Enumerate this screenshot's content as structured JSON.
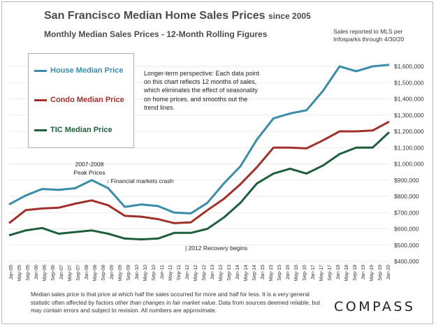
{
  "header": {
    "title": "San Francisco Median Home Sales Prices",
    "title_suffix": "since 2005",
    "subtitle": "Monthly Median Sales Prices - 12-Month Rolling Figures",
    "source_line1": "Sales reported to MLS per",
    "source_line2": "Infosparks through 4/30/20"
  },
  "legend": {
    "items": [
      {
        "label": "House Median Price",
        "color": "#3a8ca8"
      },
      {
        "label": "Condo Median Price",
        "color": "#a2302a"
      },
      {
        "label": "TIC Median Price",
        "color": "#1f5e3d"
      }
    ]
  },
  "note": "Longer-term perspective:  Each data point on this chart reflects 12 months of sales, which eliminates the effect of seasonality on home prices, and smooths out the trend lines.",
  "footer": {
    "text_a": "Median sales price is that price at which half the sales occurred for more and half for less. It is a very general statistic often affected by factors ",
    "text_italic": "other than changes in fair market value",
    "text_b": ". Data from sources deemed reliable, but may contain errors and subject to revision. All numbers are approximate."
  },
  "logo": "COMPASS",
  "chart_data": {
    "type": "line",
    "title": "San Francisco Median Home Sales Prices since 2005",
    "subtitle": "Monthly Median Sales Prices - 12-Month Rolling Figures",
    "x": [
      "Jan-05",
      "Sep-05",
      "May-06",
      "Jan-07",
      "Sep-07",
      "May-08",
      "Jan-09",
      "Sep-09",
      "May-10",
      "Jan-11",
      "Sep-11",
      "May-12",
      "Jan-13",
      "Sep-13",
      "May-14",
      "Jan-15",
      "Sep-15",
      "May-16",
      "Jan-17",
      "Sep-17",
      "May-18",
      "Jan-19",
      "Sep-19",
      "May-20"
    ],
    "x_tick_labels": [
      "Jan-05",
      "May-05",
      "Sep-05",
      "Jan-06",
      "May-06",
      "Sep-06",
      "Jan-07",
      "May-07",
      "Sep-07",
      "Jan-08",
      "May-08",
      "Sep-08",
      "Jan-09",
      "May-09",
      "Sep-09",
      "Jan-10",
      "May-10",
      "Sep-10",
      "Jan-11",
      "May-11",
      "Sep-11",
      "Jan-12",
      "May-12",
      "Sep-12",
      "Jan-13",
      "May-13",
      "Sep-13",
      "Jan-14",
      "May-14",
      "Sep-14",
      "Jan-15",
      "May-15",
      "Sep-15",
      "Jan-16",
      "May-16",
      "Sep-16",
      "Jan-17",
      "May-17",
      "Sep-17",
      "Jan-18",
      "May-18",
      "Sep-18",
      "Jan-19",
      "May-19",
      "Sep-19",
      "Jan-20"
    ],
    "ylim": [
      400000,
      1600000
    ],
    "y_ticks": [
      400000,
      500000,
      600000,
      700000,
      800000,
      900000,
      1000000,
      1100000,
      1200000,
      1300000,
      1400000,
      1500000,
      1600000
    ],
    "y_tick_labels": [
      "$400,000",
      "$500,000",
      "$600,000",
      "$700,000",
      "$800,000",
      "$900,000",
      "$1,000,000",
      "$1,100,000",
      "$1,200,000",
      "$1,300,000",
      "$1,400,000",
      "$1,500,000",
      "$1,600,000"
    ],
    "grid": true,
    "series": [
      {
        "name": "House Median Price",
        "color": "#3a8ca8",
        "values": [
          750000,
          805000,
          845000,
          840000,
          850000,
          900000,
          850000,
          735000,
          750000,
          740000,
          700000,
          695000,
          760000,
          880000,
          985000,
          1150000,
          1280000,
          1310000,
          1330000,
          1450000,
          1600000,
          1570000,
          1600000,
          1610000
        ]
      },
      {
        "name": "Condo Median Price",
        "color": "#a2302a",
        "values": [
          635000,
          715000,
          725000,
          730000,
          755000,
          775000,
          745000,
          680000,
          675000,
          660000,
          635000,
          640000,
          715000,
          785000,
          875000,
          980000,
          1100000,
          1100000,
          1095000,
          1145000,
          1200000,
          1200000,
          1205000,
          1260000
        ]
      },
      {
        "name": "TIC Median Price",
        "color": "#1f5e3d",
        "values": [
          560000,
          590000,
          605000,
          570000,
          580000,
          590000,
          570000,
          540000,
          535000,
          540000,
          575000,
          575000,
          600000,
          670000,
          760000,
          880000,
          940000,
          970000,
          940000,
          990000,
          1060000,
          1100000,
          1100000,
          1195000
        ]
      }
    ],
    "annotations": [
      {
        "text_line1": "2007-2008",
        "text_line2": "Peak Prices"
      },
      {
        "text": "Financial markets crash",
        "arrow": "↓"
      },
      {
        "text": "| 2012 Recovery begins"
      }
    ]
  }
}
